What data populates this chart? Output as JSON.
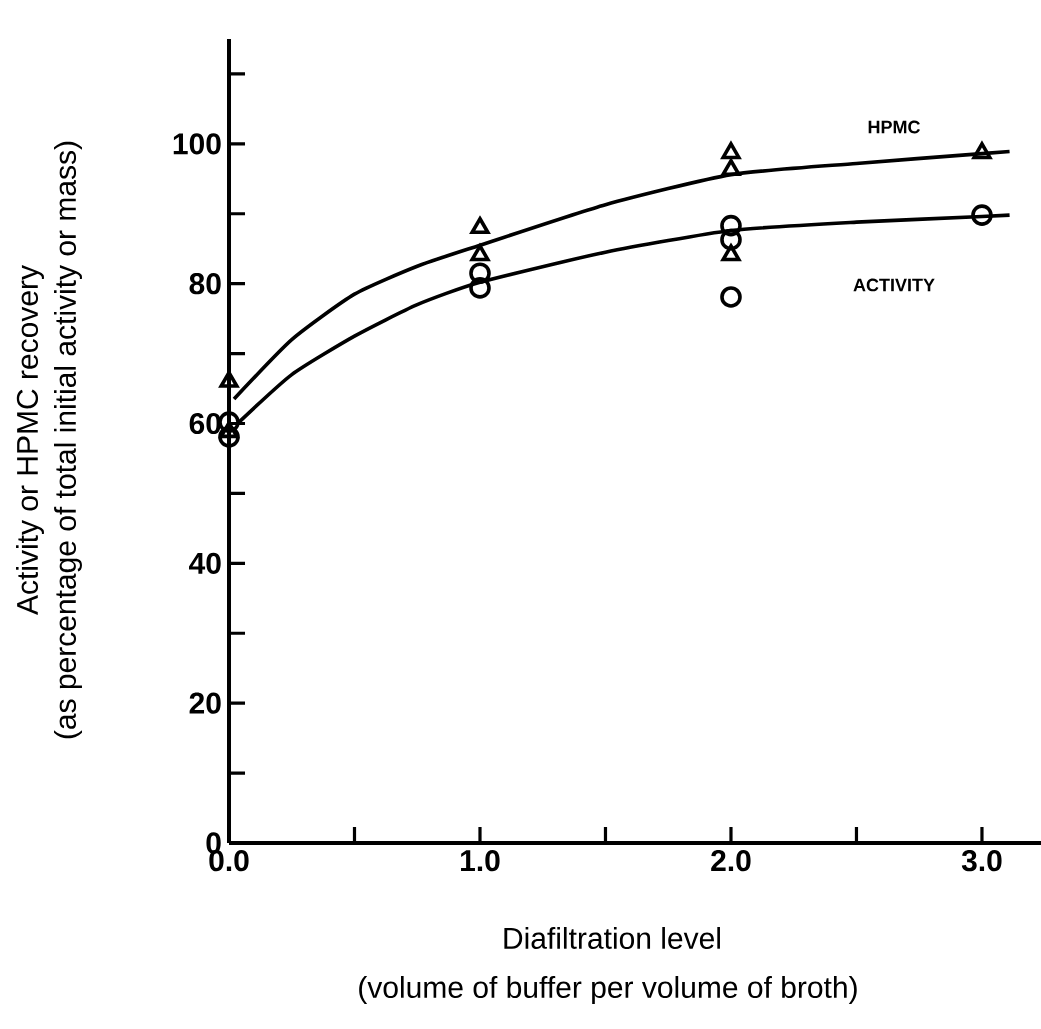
{
  "chart_data": {
    "type": "scatter",
    "xlabel": "Diafiltration level",
    "ylabel": "Activity or HPMC recovery",
    "annotations": [
      "(volume of buffer per volume of broth)",
      "(as percentage of total initial activity or mass)",
      "HPMC",
      "ACTIVITY"
    ],
    "xlim": [
      0,
      3.24
    ],
    "ylim": [
      0,
      115
    ],
    "xticks": [
      {
        "value": 0,
        "label": "0.0"
      },
      {
        "value": 0.5,
        "label": null
      },
      {
        "value": 1,
        "label": "1.0"
      },
      {
        "value": 1.5,
        "label": null
      },
      {
        "value": 2,
        "label": "2.0"
      },
      {
        "value": 2.5,
        "label": null
      },
      {
        "value": 3,
        "label": "3.0"
      }
    ],
    "yticks": [
      0,
      {
        "value": 10,
        "label": null
      },
      20,
      {
        "value": 30,
        "label": null
      },
      40,
      {
        "value": 50,
        "label": null
      },
      60,
      {
        "value": 70,
        "label": null
      },
      80,
      {
        "value": 90,
        "label": null
      },
      100,
      {
        "value": 110,
        "label": null
      }
    ],
    "series": [
      {
        "type": "line",
        "marker": "none",
        "color": "#000000",
        "x": [
          0.02,
          0.25,
          0.5,
          0.75,
          1,
          1.5,
          2,
          2.5,
          3,
          3.11
        ],
        "values": [
          63.5,
          72,
          78.5,
          82.5,
          85.5,
          91.3,
          95.6,
          97.2,
          98.6,
          98.9
        ]
      },
      {
        "type": "line",
        "marker": "none",
        "color": "#000000",
        "x": [
          0.04,
          0.25,
          0.5,
          0.75,
          1,
          1.5,
          2,
          2.5,
          3,
          3.11
        ],
        "values": [
          60.2,
          67,
          72.5,
          77,
          80.2,
          84.5,
          87.6,
          88.8,
          89.6,
          89.8
        ]
      },
      {
        "marker": "triangle",
        "color": "#000000",
        "x": [
          0,
          0,
          1,
          1,
          2,
          2,
          2,
          3
        ],
        "values": [
          66,
          58.8,
          88,
          84.1,
          98.7,
          96.3,
          84.1,
          98.7
        ]
      },
      {
        "marker": "circle",
        "color": "#000000",
        "x": [
          0,
          0,
          1,
          1,
          2,
          2,
          2,
          3
        ],
        "values": [
          60.2,
          58.1,
          81.5,
          79.4,
          88.3,
          86.3,
          78.1,
          89.8
        ]
      }
    ]
  }
}
